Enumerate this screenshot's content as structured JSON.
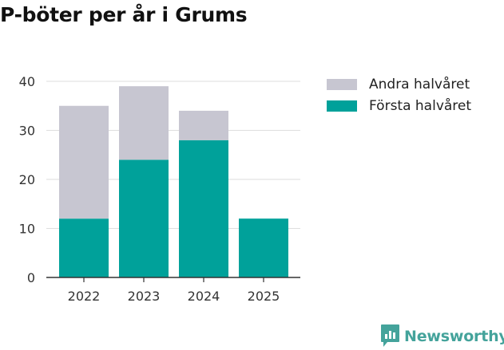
{
  "title": "P-böter per år i Grums",
  "brand": {
    "name": "Newsworthy",
    "icon": "newsworthy-logo-icon",
    "color": "#44a39b"
  },
  "chart_data": {
    "type": "bar",
    "stacked": true,
    "categories": [
      "2022",
      "2023",
      "2024",
      "2025"
    ],
    "series": [
      {
        "name": "Första halvåret",
        "color": "#00a19a",
        "values": [
          12,
          24,
          28,
          12
        ]
      },
      {
        "name": "Andra halvåret",
        "color": "#c7c6d1",
        "values": [
          23,
          15,
          6,
          0
        ]
      }
    ],
    "legend": [
      "Andra halvåret",
      "Första halvåret"
    ],
    "legend_placement": "right",
    "ylim": [
      0,
      40
    ],
    "yticks": [
      0,
      10,
      20,
      30,
      40
    ],
    "grid": true,
    "xlabel": "",
    "ylabel": ""
  }
}
